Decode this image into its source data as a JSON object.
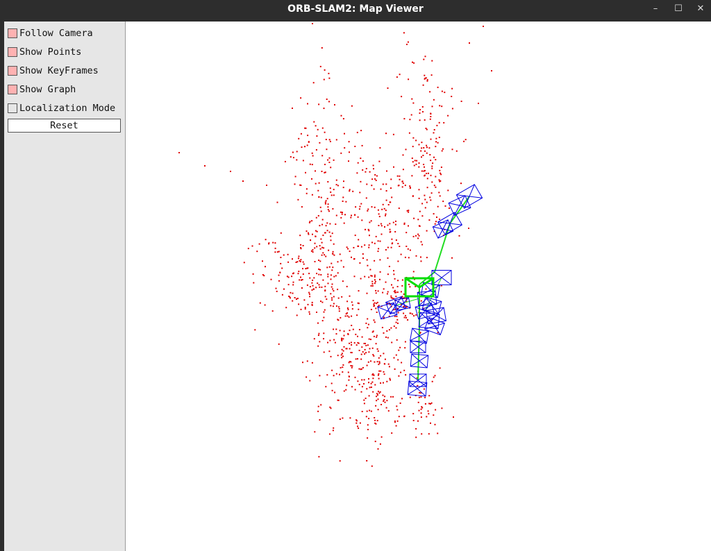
{
  "window": {
    "title": "ORB-SLAM2: Map Viewer",
    "controls": {
      "minimize": "–",
      "maximize": "☐",
      "close": "✕"
    }
  },
  "panel": {
    "options": [
      {
        "label": "Follow Camera",
        "checked": true
      },
      {
        "label": "Show Points",
        "checked": true
      },
      {
        "label": "Show KeyFrames",
        "checked": true
      },
      {
        "label": "Show Graph",
        "checked": true
      },
      {
        "label": "Localization Mode",
        "checked": false
      }
    ],
    "reset_label": "Reset"
  },
  "colors": {
    "map_points": "#e00000",
    "keyframes": "#0000e0",
    "graph": "#22dd22",
    "current_camera": "#00dd00",
    "checked_box": "#ffb2b2"
  }
}
